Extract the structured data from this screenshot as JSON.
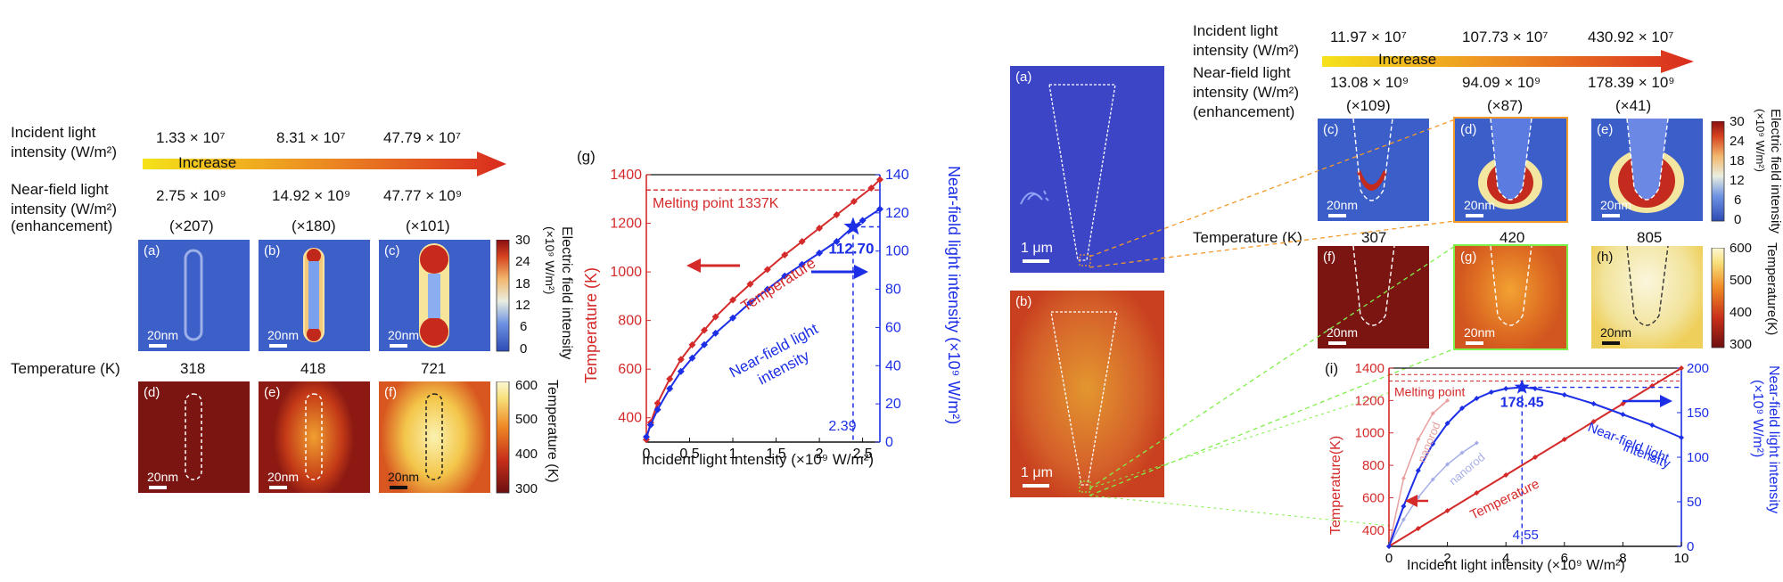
{
  "left": {
    "incident_label": [
      "Incident light",
      "intensity (W/m²)"
    ],
    "incident_values": [
      "1.33 × 10⁷",
      "8.31 × 10⁷",
      "47.79 × 10⁷"
    ],
    "increase": "Increase",
    "nearfield_label": [
      "Near-field light",
      "intensity (W/m²)"
    ],
    "nearfield_values": [
      "2.75 × 10⁹",
      "14.92 × 10⁹",
      "47.77 × 10⁹"
    ],
    "enhancement_label": "(enhancement)",
    "enhancement_values": [
      "(×207)",
      "(×180)",
      "(×101)"
    ],
    "field_panels": [
      "(a)",
      "(b)",
      "(c)"
    ],
    "temp_panels": [
      "(d)",
      "(e)",
      "(f)"
    ],
    "scale": "20nm",
    "temperature_label": "Temperature (K)",
    "temperature_values": [
      "318",
      "418",
      "721"
    ],
    "field_colorbar": {
      "ticks": [
        "30",
        "24",
        "18",
        "12",
        "6",
        "0"
      ],
      "title": "Electric field intensity",
      "unit": "(×10⁹ W/m²)"
    },
    "temp_colorbar": {
      "ticks": [
        "600",
        "500",
        "400",
        "300"
      ],
      "title": "Temperature (K)"
    }
  },
  "chart_g": {
    "panel": "(g)",
    "melting": "Melting point 1337K",
    "temp_series_label": "Temperature",
    "nf_series_label": [
      "Near-field light",
      "intensity"
    ],
    "peak_label": "112.70",
    "x_marker_label": "2.39",
    "xlabel": "Incident light intensity (×10⁹ W/m²)",
    "ylabel_left": "Temperature (K)",
    "ylabel_right": "Near-field light intensity (×10⁹ W/m²)"
  },
  "right": {
    "micro_panels": [
      "(a)",
      "(b)"
    ],
    "micro_scale": "1 μm",
    "incident_label": [
      "Incident light",
      "intensity (W/m²)"
    ],
    "incident_values": [
      "11.97 × 10⁷",
      "107.73 × 10⁷",
      "430.92 × 10⁷"
    ],
    "increase": "Increase",
    "nearfield_label": [
      "Near-field light",
      "intensity (W/m²)",
      "(enhancement)"
    ],
    "nearfield_values": [
      "13.08 × 10⁹",
      "94.09 × 10⁹",
      "178.39 × 10⁹"
    ],
    "enhancement_values": [
      "(×109)",
      "(×87)",
      "(×41)"
    ],
    "field_panels": [
      "(c)",
      "(d)",
      "(e)"
    ],
    "temp_panels": [
      "(f)",
      "(g)",
      "(h)"
    ],
    "scale": "20nm",
    "temperature_label": "Temperature (K)",
    "temperature_values": [
      "307",
      "420",
      "805"
    ],
    "field_colorbar": {
      "ticks": [
        "30",
        "24",
        "18",
        "12",
        "6",
        "0"
      ],
      "title": "Electric field intensity",
      "unit": "(×10⁹ W/m²)"
    },
    "temp_colorbar": {
      "ticks": [
        "600",
        "500",
        "400",
        "300"
      ],
      "title": "Temperature(K)"
    }
  },
  "chart_i": {
    "panel": "(i)",
    "melting": "Melting point",
    "peak_label": "178.45",
    "x_marker_label": "4.55",
    "nanorod": "nanorod",
    "temp_series_label": "Temperature",
    "nf_series_label": [
      "Near-field light",
      "intensity"
    ],
    "xlabel": "Incident light intensity (×10⁹ W/m²)",
    "ylabel_left": "Temperature(K)",
    "ylabel_right": [
      "Near-field light intensity",
      "(×10⁹ W/m²)"
    ]
  },
  "chart_data": [
    {
      "type": "line",
      "title": "",
      "xlabel": "Incident light intensity (×10⁹ W/m²)",
      "ylabel": "Temperature (K)",
      "y2label": "Near-field light intensity (×10⁹ W/m²)",
      "xlim": [
        0,
        2.7
      ],
      "ylim": [
        300,
        1400
      ],
      "y2lim": [
        0,
        140
      ],
      "xticks": [
        "0",
        "0.5",
        "1",
        "1.5",
        "2",
        "2.5"
      ],
      "yticks": [
        "400",
        "600",
        "800",
        "1000",
        "1200",
        "1400"
      ],
      "y2ticks": [
        "0",
        "20",
        "40",
        "60",
        "80",
        "100",
        "120",
        "140"
      ],
      "melting_point": 1337,
      "peak": {
        "x": 2.39,
        "y2": 112.7
      },
      "series": [
        {
          "name": "Temperature",
          "axis": "left",
          "color": "#d42a2a",
          "x": [
            0,
            0.05,
            0.13,
            0.27,
            0.4,
            0.53,
            0.67,
            0.8,
            1.0,
            1.2,
            1.4,
            1.6,
            1.8,
            2.0,
            2.2,
            2.4,
            2.6,
            2.7
          ],
          "y": [
            310,
            380,
            460,
            560,
            640,
            700,
            760,
            815,
            885,
            950,
            1010,
            1070,
            1125,
            1180,
            1235,
            1290,
            1345,
            1380
          ]
        },
        {
          "name": "Near-field light intensity",
          "axis": "right",
          "color": "#1c2fe6",
          "x": [
            0,
            0.05,
            0.13,
            0.27,
            0.4,
            0.53,
            0.67,
            0.8,
            1.0,
            1.2,
            1.4,
            1.6,
            1.8,
            2.0,
            2.2,
            2.39,
            2.5,
            2.7
          ],
          "y": [
            2.75,
            9,
            17,
            28,
            37,
            44,
            51,
            57,
            65,
            73,
            80,
            87,
            93,
            99,
            105,
            112.7,
            116,
            122
          ]
        }
      ]
    },
    {
      "type": "line",
      "title": "",
      "xlabel": "Incident light intensity (×10⁹ W/m²)",
      "ylabel": "Temperature(K)",
      "y2label": "Near-field light intensity (×10⁹ W/m²)",
      "xlim": [
        0,
        10
      ],
      "ylim": [
        300,
        1400
      ],
      "y2lim": [
        0,
        200
      ],
      "xticks": [
        "0",
        "2",
        "4",
        "6",
        "8",
        "10"
      ],
      "yticks": [
        "400",
        "600",
        "800",
        "1000",
        "1200",
        "1400"
      ],
      "y2ticks": [
        "0",
        "50",
        "100",
        "150",
        "200"
      ],
      "peak": {
        "x": 4.55,
        "y2": 178.45
      },
      "series": [
        {
          "name": "Temperature",
          "axis": "left",
          "color": "#d42a2a",
          "x": [
            0,
            1,
            2,
            3,
            4,
            5,
            6,
            7,
            8,
            9,
            10
          ],
          "y": [
            300,
            410,
            520,
            630,
            740,
            850,
            960,
            1070,
            1180,
            1290,
            1400
          ]
        },
        {
          "name": "Near-field light intensity",
          "axis": "right",
          "color": "#1c2fe6",
          "x": [
            0,
            0.5,
            1,
            1.5,
            2,
            2.5,
            3,
            3.5,
            4,
            4.55,
            5,
            6,
            7,
            8,
            9,
            10
          ],
          "y": [
            0,
            45,
            85,
            115,
            138,
            155,
            166,
            173,
            177,
            178.45,
            177,
            170,
            160,
            148,
            136,
            122
          ]
        },
        {
          "name": "nanorod",
          "axis": "left",
          "color": "#e8a0a0",
          "x": [
            0,
            0.5,
            1,
            1.5,
            2
          ],
          "y": [
            300,
            720,
            960,
            1120,
            1200
          ]
        },
        {
          "name": "nanorod",
          "axis": "right",
          "color": "#a6aee8",
          "x": [
            0,
            0.5,
            1,
            1.5,
            2,
            2.5,
            3
          ],
          "y": [
            0,
            30,
            55,
            75,
            92,
            105,
            116
          ]
        }
      ]
    }
  ],
  "colors": {
    "red": "#d42a2a",
    "blue": "#1c2fe6",
    "fieldBg": "#3e5ec9"
  }
}
